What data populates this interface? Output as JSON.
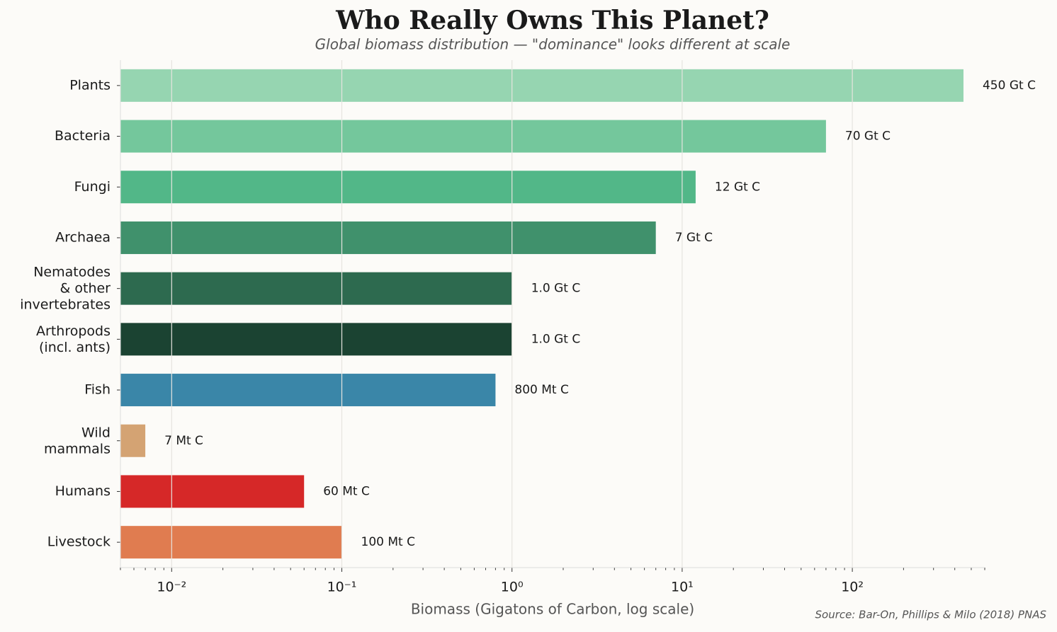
{
  "chart_data": {
    "type": "bar",
    "orientation": "horizontal",
    "title": "Who Really Owns This Planet?",
    "subtitle": "Global biomass distribution — \"dominance\" looks different at scale",
    "xlabel": "Biomass (Gigatons of Carbon, log scale)",
    "source": "Source: Bar-On, Phillips & Milo (2018) PNAS",
    "categories": [
      "Plants",
      "Bacteria",
      "Fungi",
      "Archaea",
      "Nematodes\n& other\ninvertebrates",
      "Arthropods\n(incl. ants)",
      "Fish",
      "Wild\nmammals",
      "Humans",
      "Livestock"
    ],
    "values": [
      450,
      70,
      12,
      7,
      1.0,
      1.0,
      0.8,
      0.007,
      0.06,
      0.1
    ],
    "value_labels": [
      "450 Gt C",
      "70 Gt C",
      "12 Gt C",
      "7 Gt C",
      "1.0 Gt C",
      "1.0 Gt C",
      "800 Mt C",
      "7 Mt C",
      "60 Mt C",
      "100 Mt C"
    ],
    "colors": [
      "#96d5b1",
      "#74c79c",
      "#52b788",
      "#40916c",
      "#2d6a4f",
      "#1b4332",
      "#3a86a8",
      "#d4a373",
      "#d62828",
      "#e07c50"
    ],
    "xscale": "log",
    "xlim": [
      0.005,
      600
    ],
    "xticks": [
      {
        "value": 0.01,
        "label": "10⁻²"
      },
      {
        "value": 0.1,
        "label": "10⁻¹"
      },
      {
        "value": 1,
        "label": "10⁰"
      },
      {
        "value": 10,
        "label": "10¹"
      },
      {
        "value": 100,
        "label": "10²"
      }
    ],
    "xminorticks": [
      0.005,
      0.006,
      0.007,
      0.008,
      0.009,
      0.02,
      0.03,
      0.04,
      0.05,
      0.06,
      0.07,
      0.08,
      0.09,
      0.2,
      0.3,
      0.4,
      0.5,
      0.6,
      0.7,
      0.8,
      0.9,
      2,
      3,
      4,
      5,
      6,
      7,
      8,
      9,
      20,
      30,
      40,
      50,
      60,
      70,
      80,
      90,
      200,
      300,
      400,
      500,
      600
    ],
    "grid": true
  }
}
